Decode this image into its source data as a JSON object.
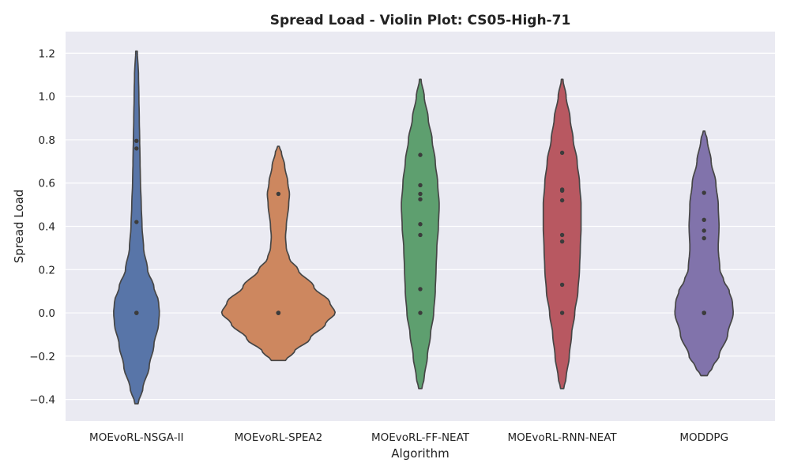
{
  "chart_data": {
    "type": "violin",
    "title": "Spread Load - Violin Plot: CS05-High-71",
    "xlabel": "Algorithm",
    "ylabel": "Spread Load",
    "categories": [
      "MOEvoRL-NSGA-II",
      "MOEvoRL-SPEA2",
      "MOEvoRL-FF-NEAT",
      "MOEvoRL-RNN-NEAT",
      "MODDPG"
    ],
    "ylim": [
      -0.5,
      1.3
    ],
    "yticks": [
      -0.4,
      -0.2,
      0.0,
      0.2,
      0.4,
      0.6,
      0.8,
      1.0,
      1.2
    ],
    "ytick_labels": [
      "−0.4",
      "−0.2",
      "0.0",
      "0.2",
      "0.4",
      "0.6",
      "0.8",
      "1.0",
      "1.2"
    ],
    "grid": true,
    "background": "#eaeaf2",
    "series": [
      {
        "category": "MOEvoRL-NSGA-II",
        "color": "#5875a8",
        "points": [
          0.795,
          0.76,
          0.42,
          0.0,
          0.0,
          0.0
        ],
        "range": [
          -0.42,
          1.21
        ],
        "profile": [
          [
            -0.42,
            2
          ],
          [
            -0.35,
            8
          ],
          [
            -0.25,
            16
          ],
          [
            -0.15,
            22
          ],
          [
            -0.05,
            28
          ],
          [
            0.0,
            29
          ],
          [
            0.05,
            28
          ],
          [
            0.12,
            22
          ],
          [
            0.2,
            14
          ],
          [
            0.3,
            9
          ],
          [
            0.4,
            7
          ],
          [
            0.5,
            6
          ],
          [
            0.6,
            5
          ],
          [
            0.7,
            4.5
          ],
          [
            0.8,
            4
          ],
          [
            0.9,
            3.5
          ],
          [
            1.0,
            3
          ],
          [
            1.1,
            2.5
          ],
          [
            1.21,
            1
          ]
        ]
      },
      {
        "category": "MOEvoRL-SPEA2",
        "color": "#cd875f",
        "points": [
          0.55,
          0.0,
          0.0,
          0.0,
          0.0,
          0.0
        ],
        "range": [
          -0.22,
          0.77
        ],
        "profile": [
          [
            -0.22,
            9
          ],
          [
            -0.18,
            20
          ],
          [
            -0.12,
            40
          ],
          [
            -0.05,
            60
          ],
          [
            0.0,
            72
          ],
          [
            0.05,
            65
          ],
          [
            0.12,
            45
          ],
          [
            0.2,
            25
          ],
          [
            0.25,
            14
          ],
          [
            0.3,
            10
          ],
          [
            0.35,
            9
          ],
          [
            0.4,
            10
          ],
          [
            0.5,
            13
          ],
          [
            0.55,
            14
          ],
          [
            0.6,
            12
          ],
          [
            0.68,
            8
          ],
          [
            0.74,
            4
          ],
          [
            0.77,
            1
          ]
        ]
      },
      {
        "category": "MOEvoRL-FF-NEAT",
        "color": "#5e9f6f",
        "points": [
          0.73,
          0.59,
          0.55,
          0.525,
          0.41,
          0.36,
          0.11,
          0.0
        ],
        "range": [
          -0.35,
          1.08
        ],
        "profile": [
          [
            -0.35,
            2
          ],
          [
            -0.3,
            5
          ],
          [
            -0.2,
            9
          ],
          [
            -0.1,
            13
          ],
          [
            0.0,
            17
          ],
          [
            0.1,
            19
          ],
          [
            0.2,
            20
          ],
          [
            0.3,
            21
          ],
          [
            0.4,
            23
          ],
          [
            0.5,
            24
          ],
          [
            0.6,
            22
          ],
          [
            0.7,
            19
          ],
          [
            0.8,
            15
          ],
          [
            0.9,
            10
          ],
          [
            1.0,
            5
          ],
          [
            1.08,
            1
          ]
        ]
      },
      {
        "category": "MOEvoRL-RNN-NEAT",
        "color": "#b85861",
        "points": [
          0.74,
          0.57,
          0.565,
          0.52,
          0.36,
          0.33,
          0.13,
          0.0
        ],
        "range": [
          -0.35,
          1.08
        ],
        "profile": [
          [
            -0.35,
            2
          ],
          [
            -0.3,
            5
          ],
          [
            -0.2,
            9
          ],
          [
            -0.1,
            12
          ],
          [
            0.0,
            16
          ],
          [
            0.1,
            20
          ],
          [
            0.2,
            22
          ],
          [
            0.3,
            23
          ],
          [
            0.4,
            24
          ],
          [
            0.5,
            24
          ],
          [
            0.6,
            22
          ],
          [
            0.7,
            19
          ],
          [
            0.8,
            14
          ],
          [
            0.9,
            10
          ],
          [
            1.0,
            5
          ],
          [
            1.08,
            1
          ]
        ]
      },
      {
        "category": "MODDPG",
        "color": "#8173ab",
        "points": [
          0.555,
          0.43,
          0.38,
          0.345,
          0.0,
          0.0,
          0.0,
          0.0
        ],
        "range": [
          -0.29,
          0.84
        ],
        "profile": [
          [
            -0.29,
            4
          ],
          [
            -0.25,
            11
          ],
          [
            -0.2,
            19
          ],
          [
            -0.1,
            30
          ],
          [
            0.0,
            37
          ],
          [
            0.05,
            36
          ],
          [
            0.1,
            32
          ],
          [
            0.15,
            25
          ],
          [
            0.2,
            20
          ],
          [
            0.3,
            18
          ],
          [
            0.4,
            19
          ],
          [
            0.5,
            18
          ],
          [
            0.6,
            15
          ],
          [
            0.7,
            9
          ],
          [
            0.8,
            4
          ],
          [
            0.84,
            1
          ]
        ]
      }
    ]
  }
}
